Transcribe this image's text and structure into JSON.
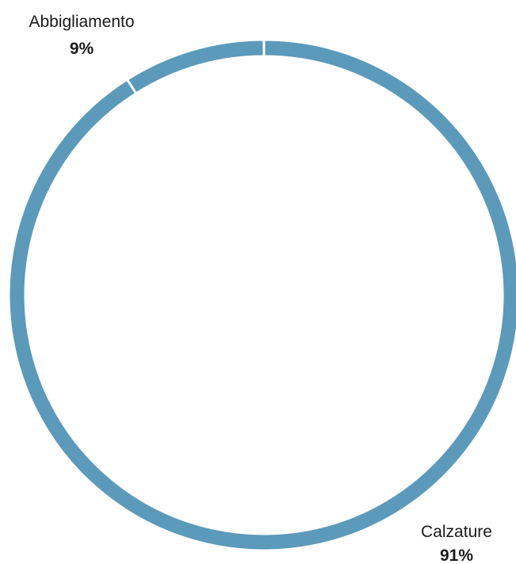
{
  "chart_data": {
    "type": "pie",
    "title": "",
    "categories": [
      "Abbigliamento",
      "Calzature"
    ],
    "values": [
      9,
      91
    ],
    "value_labels": [
      "9%",
      "91%"
    ],
    "legend": "none",
    "colors": {
      "Abbigliamento": "#5b9aba",
      "Calzature": "#5b9aba"
    }
  }
}
